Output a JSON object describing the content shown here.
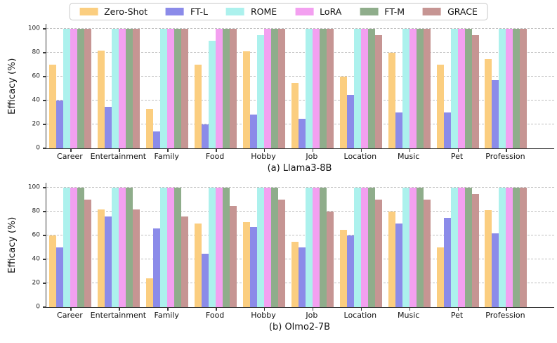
{
  "figure": {
    "background": "#ffffff",
    "grid_color": "#bfbfbf",
    "axis_color": "#3a3a3a",
    "grid_style": "horizontal-dashed"
  },
  "legend": {
    "position": "top-center",
    "items": [
      {
        "label": "Zero-Shot",
        "color": "#FBCE80"
      },
      {
        "label": "FT-L",
        "color": "#8B8BE9"
      },
      {
        "label": "ROME",
        "color": "#ACF1ED"
      },
      {
        "label": "LoRA",
        "color": "#F3A0F0"
      },
      {
        "label": "FT-M",
        "color": "#8FAD8B"
      },
      {
        "label": "GRACE",
        "color": "#C69593"
      }
    ]
  },
  "chart_data": [
    {
      "type": "bar",
      "title": "(a) Llama3-8B",
      "xlabel": "",
      "ylabel": "Efficacy (%)",
      "ylim": [
        0,
        105
      ],
      "yticks": [
        0,
        20,
        40,
        60,
        80,
        100
      ],
      "grid": "horizontal-dashed",
      "legend_position": "top-center",
      "categories": [
        "Career",
        "Entertainment",
        "Family",
        "Food",
        "Hobby",
        "Job",
        "Location",
        "Music",
        "Pet",
        "Profession"
      ],
      "series": [
        {
          "name": "Zero-Shot",
          "color": "#FBCE80",
          "values": [
            70,
            82,
            33,
            70,
            81,
            55,
            60,
            80,
            70,
            75
          ]
        },
        {
          "name": "FT-L",
          "color": "#8B8BE9",
          "values": [
            40,
            35,
            14,
            20,
            28,
            25,
            45,
            30,
            30,
            57
          ]
        },
        {
          "name": "ROME",
          "color": "#ACF1ED",
          "values": [
            100,
            100,
            100,
            90,
            95,
            100,
            100,
            100,
            100,
            100
          ]
        },
        {
          "name": "LoRA",
          "color": "#F3A0F0",
          "values": [
            100,
            100,
            100,
            100,
            100,
            100,
            100,
            100,
            100,
            100
          ]
        },
        {
          "name": "FT-M",
          "color": "#8FAD8B",
          "values": [
            100,
            100,
            100,
            100,
            100,
            100,
            100,
            100,
            100,
            100
          ]
        },
        {
          "name": "GRACE",
          "color": "#C69593",
          "values": [
            100,
            100,
            100,
            100,
            100,
            100,
            95,
            100,
            95,
            100
          ]
        }
      ]
    },
    {
      "type": "bar",
      "title": "(b) Olmo2-7B",
      "xlabel": "",
      "ylabel": "Efficacy (%)",
      "ylim": [
        0,
        105
      ],
      "yticks": [
        0,
        20,
        40,
        60,
        80,
        100
      ],
      "grid": "horizontal-dashed",
      "legend_position": "top-center",
      "categories": [
        "Career",
        "Entertainment",
        "Family",
        "Food",
        "Hobby",
        "Job",
        "Location",
        "Music",
        "Pet",
        "Profession"
      ],
      "series": [
        {
          "name": "Zero-Shot",
          "color": "#FBCE80",
          "values": [
            60,
            82,
            24,
            70,
            71,
            55,
            65,
            80,
            50,
            81
          ]
        },
        {
          "name": "FT-L",
          "color": "#8B8BE9",
          "values": [
            50,
            76,
            66,
            45,
            67,
            50,
            60,
            70,
            75,
            62
          ]
        },
        {
          "name": "ROME",
          "color": "#ACF1ED",
          "values": [
            100,
            100,
            100,
            100,
            100,
            100,
            100,
            100,
            100,
            100
          ]
        },
        {
          "name": "LoRA",
          "color": "#F3A0F0",
          "values": [
            100,
            100,
            100,
            100,
            100,
            100,
            100,
            100,
            100,
            100
          ]
        },
        {
          "name": "FT-M",
          "color": "#8FAD8B",
          "values": [
            100,
            100,
            100,
            100,
            100,
            100,
            100,
            100,
            100,
            100
          ]
        },
        {
          "name": "GRACE",
          "color": "#C69593",
          "values": [
            90,
            82,
            76,
            85,
            90,
            80,
            90,
            90,
            95,
            100
          ]
        }
      ]
    }
  ]
}
